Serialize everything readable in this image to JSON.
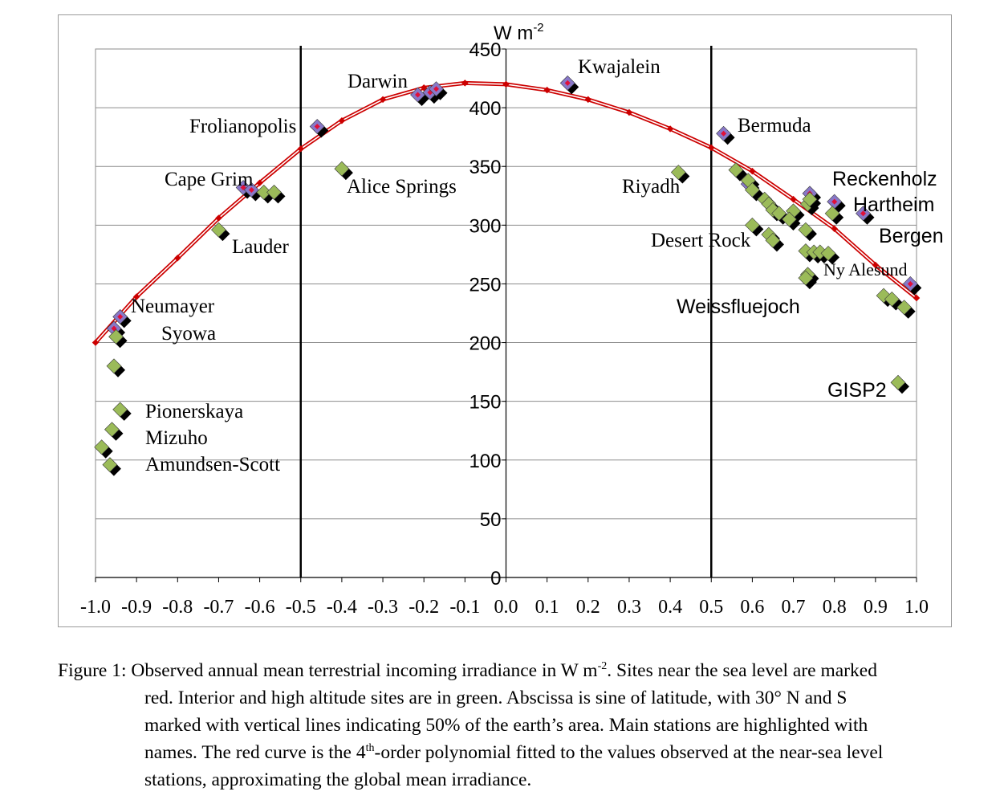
{
  "chart_data": {
    "type": "scatter",
    "y_unit_label": {
      "base": "W m",
      "sup": "-2"
    },
    "xlim": [
      -1.0,
      1.0
    ],
    "ylim": [
      0,
      450
    ],
    "x_ticks": [
      -1.0,
      -0.9,
      -0.8,
      -0.7,
      -0.6,
      -0.5,
      -0.4,
      -0.3,
      -0.2,
      -0.1,
      0.0,
      0.1,
      0.2,
      0.3,
      0.4,
      0.5,
      0.6,
      0.7,
      0.8,
      0.9,
      1.0
    ],
    "x_tick_labels": [
      "-1.0",
      "-0.9",
      "-0.8",
      "-0.7",
      "-0.6",
      "-0.5",
      "-0.4",
      "-0.3",
      "-0.2",
      "-0.1",
      "0.0",
      "0.1",
      "0.2",
      "0.3",
      "0.4",
      "0.5",
      "0.6",
      "0.7",
      "0.8",
      "0.9",
      "1.0"
    ],
    "y_ticks": [
      0,
      50,
      100,
      150,
      200,
      250,
      300,
      350,
      400,
      450
    ],
    "y_tick_labels": [
      "0",
      "50",
      "100",
      "150",
      "200",
      "250",
      "300",
      "350",
      "400",
      "450"
    ],
    "grid": true,
    "vertical_lines": [
      -0.5,
      0.5
    ],
    "colors": {
      "sea_level": "#8878c8",
      "sea_level_dot": "#e0103a",
      "interior": "#9bbb59",
      "curve": "#cc0000",
      "vline": "#000000",
      "grid": "#8c8c8c",
      "shadow": "#000000"
    },
    "series": [
      {
        "key": "sea",
        "points": [
          [
            -0.94,
            222
          ],
          [
            -0.955,
            212
          ],
          [
            -0.64,
            332
          ],
          [
            -0.62,
            330
          ],
          [
            -0.46,
            384
          ],
          [
            -0.215,
            411
          ],
          [
            -0.185,
            413
          ],
          [
            -0.17,
            416
          ],
          [
            0.15,
            421
          ],
          [
            0.53,
            378
          ],
          [
            0.59,
            335
          ],
          [
            0.74,
            327
          ],
          [
            0.8,
            320
          ],
          [
            0.87,
            310
          ],
          [
            0.985,
            250
          ]
        ]
      },
      {
        "key": "interior",
        "points": [
          [
            -0.985,
            111
          ],
          [
            -0.965,
            96
          ],
          [
            -0.96,
            126
          ],
          [
            -0.94,
            143
          ],
          [
            -0.955,
            180
          ],
          [
            -0.95,
            205
          ],
          [
            -0.59,
            328
          ],
          [
            -0.565,
            328
          ],
          [
            -0.7,
            296
          ],
          [
            -0.4,
            348
          ],
          [
            0.42,
            345
          ],
          [
            0.56,
            347
          ],
          [
            0.59,
            338
          ],
          [
            0.6,
            330
          ],
          [
            0.63,
            322
          ],
          [
            0.64,
            318
          ],
          [
            0.65,
            313
          ],
          [
            0.665,
            310
          ],
          [
            0.7,
            312
          ],
          [
            0.69,
            305
          ],
          [
            0.6,
            300
          ],
          [
            0.64,
            292
          ],
          [
            0.65,
            287
          ],
          [
            0.73,
            296
          ],
          [
            0.73,
            278
          ],
          [
            0.75,
            277
          ],
          [
            0.765,
            277
          ],
          [
            0.785,
            276
          ],
          [
            0.735,
            258
          ],
          [
            0.73,
            255
          ],
          [
            0.735,
            318
          ],
          [
            0.74,
            322
          ],
          [
            0.795,
            310
          ],
          [
            0.92,
            240
          ],
          [
            0.94,
            237
          ],
          [
            0.97,
            230
          ],
          [
            0.955,
            166
          ]
        ]
      }
    ],
    "fit_curve": [
      [
        -1.0,
        200
      ],
      [
        -0.9,
        239
      ],
      [
        -0.8,
        272
      ],
      [
        -0.7,
        306
      ],
      [
        -0.6,
        336
      ],
      [
        -0.5,
        365
      ],
      [
        -0.4,
        389
      ],
      [
        -0.3,
        407
      ],
      [
        -0.2,
        417
      ],
      [
        -0.1,
        421
      ],
      [
        0.0,
        420
      ],
      [
        0.1,
        415
      ],
      [
        0.2,
        407
      ],
      [
        0.3,
        396
      ],
      [
        0.4,
        382
      ],
      [
        0.5,
        366
      ],
      [
        0.6,
        346
      ],
      [
        0.7,
        322
      ],
      [
        0.8,
        297
      ],
      [
        0.9,
        266
      ],
      [
        1.0,
        238
      ]
    ],
    "station_labels": [
      {
        "text": "Kwajalein",
        "font": "serif"
      },
      {
        "text": "Darwin",
        "font": "serif"
      },
      {
        "text": "Frolianopolis",
        "font": "serif"
      },
      {
        "text": "Cape Grim",
        "font": "serif"
      },
      {
        "text": "Alice Springs",
        "font": "serif"
      },
      {
        "text": "Lauder",
        "font": "serif"
      },
      {
        "text": "Neumayer",
        "font": "serif"
      },
      {
        "text": "Syowa",
        "font": "serif"
      },
      {
        "text": "Pionerskaya",
        "font": "serif"
      },
      {
        "text": "Mizuho",
        "font": "serif"
      },
      {
        "text": "Amundsen-Scott",
        "font": "serif"
      },
      {
        "text": "Bermuda",
        "font": "serif"
      },
      {
        "text": "Riyadh",
        "font": "serif"
      },
      {
        "text": "Reckenholz",
        "font": "sans"
      },
      {
        "text": "Hartheim",
        "font": "sans"
      },
      {
        "text": "Bergen",
        "font": "sans"
      },
      {
        "text": "Desert Rock",
        "font": "serif"
      },
      {
        "text": "Ny Alesund",
        "font": "serif"
      },
      {
        "text": "Weissfluejoch",
        "font": "sans"
      },
      {
        "text": "GISP2",
        "font": "sans"
      }
    ]
  },
  "caption": {
    "lead": "Figure 1: Observed annual mean terrestrial incoming irradiance in W m",
    "lead_sup": "-2",
    "lead_rest": ". Sites near the sea level are marked",
    "line2": "red. Interior and high altitude sites are in green. Abscissa is sine of latitude, with 30° N and S",
    "line3": "marked with vertical lines indicating 50% of the earth’s area. Main stations are highlighted with",
    "line4_a": "names. The red curve is the 4",
    "line4_sup": "th",
    "line4_b": "-order polynomial fitted to the values observed at the near-sea level",
    "line5": "stations, approximating the global mean irradiance."
  }
}
